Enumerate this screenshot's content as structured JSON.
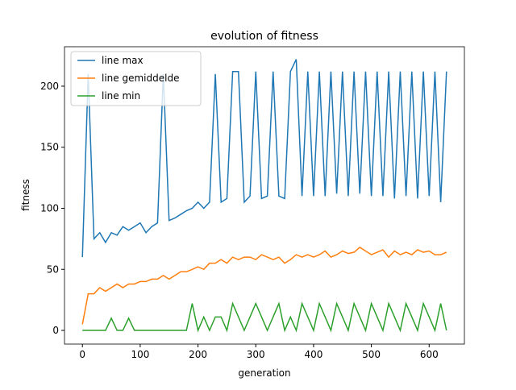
{
  "chart_data": {
    "type": "line",
    "title": "evolution of fitness",
    "xlabel": "generation",
    "ylabel": "fitness",
    "x": [
      0,
      10,
      20,
      30,
      40,
      50,
      60,
      70,
      80,
      90,
      100,
      110,
      120,
      130,
      140,
      150,
      160,
      170,
      180,
      190,
      200,
      210,
      220,
      230,
      240,
      250,
      260,
      270,
      280,
      290,
      300,
      310,
      320,
      330,
      340,
      350,
      360,
      370,
      380,
      390,
      400,
      410,
      420,
      430,
      440,
      450,
      460,
      470,
      480,
      490,
      500,
      510,
      520,
      530,
      540,
      550,
      560,
      570,
      580,
      590,
      600,
      610,
      620,
      630
    ],
    "series": [
      {
        "name": "line max",
        "color": "#1f77b4",
        "values": [
          60,
          210,
          75,
          80,
          72,
          80,
          78,
          85,
          82,
          85,
          88,
          80,
          85,
          88,
          210,
          90,
          92,
          95,
          98,
          100,
          105,
          100,
          105,
          210,
          105,
          108,
          212,
          212,
          105,
          110,
          212,
          108,
          110,
          212,
          110,
          108,
          212,
          222,
          110,
          212,
          110,
          212,
          110,
          212,
          112,
          212,
          110,
          212,
          112,
          212,
          110,
          212,
          110,
          212,
          108,
          212,
          110,
          212,
          108,
          212,
          110,
          212,
          105,
          212
        ]
      },
      {
        "name": "line gemiddelde",
        "color": "#ff7f0e",
        "values": [
          5,
          30,
          30,
          35,
          32,
          35,
          38,
          35,
          38,
          38,
          40,
          40,
          42,
          42,
          45,
          42,
          45,
          48,
          48,
          50,
          52,
          50,
          55,
          55,
          58,
          55,
          60,
          58,
          60,
          60,
          58,
          62,
          60,
          58,
          60,
          55,
          58,
          62,
          60,
          62,
          60,
          62,
          65,
          60,
          62,
          65,
          63,
          64,
          68,
          65,
          62,
          64,
          66,
          60,
          65,
          62,
          64,
          62,
          66,
          64,
          65,
          62,
          62,
          64
        ]
      },
      {
        "name": "line min",
        "color": "#2ca02c",
        "values": [
          0,
          0,
          0,
          0,
          0,
          10,
          0,
          0,
          10,
          0,
          0,
          0,
          0,
          0,
          0,
          0,
          0,
          0,
          0,
          22,
          0,
          11,
          0,
          11,
          11,
          0,
          22,
          11,
          0,
          11,
          22,
          11,
          0,
          11,
          22,
          0,
          11,
          0,
          22,
          11,
          0,
          22,
          11,
          0,
          22,
          11,
          0,
          22,
          11,
          0,
          22,
          11,
          0,
          22,
          11,
          0,
          22,
          11,
          0,
          22,
          11,
          0,
          22,
          0
        ]
      }
    ],
    "xlim": [
      -31,
      661
    ],
    "ylim": [
      -11.2,
      232.3
    ],
    "xticks": [
      0,
      100,
      200,
      300,
      400,
      500,
      600
    ],
    "yticks": [
      0,
      50,
      100,
      150,
      200
    ],
    "legend": "upper left"
  }
}
